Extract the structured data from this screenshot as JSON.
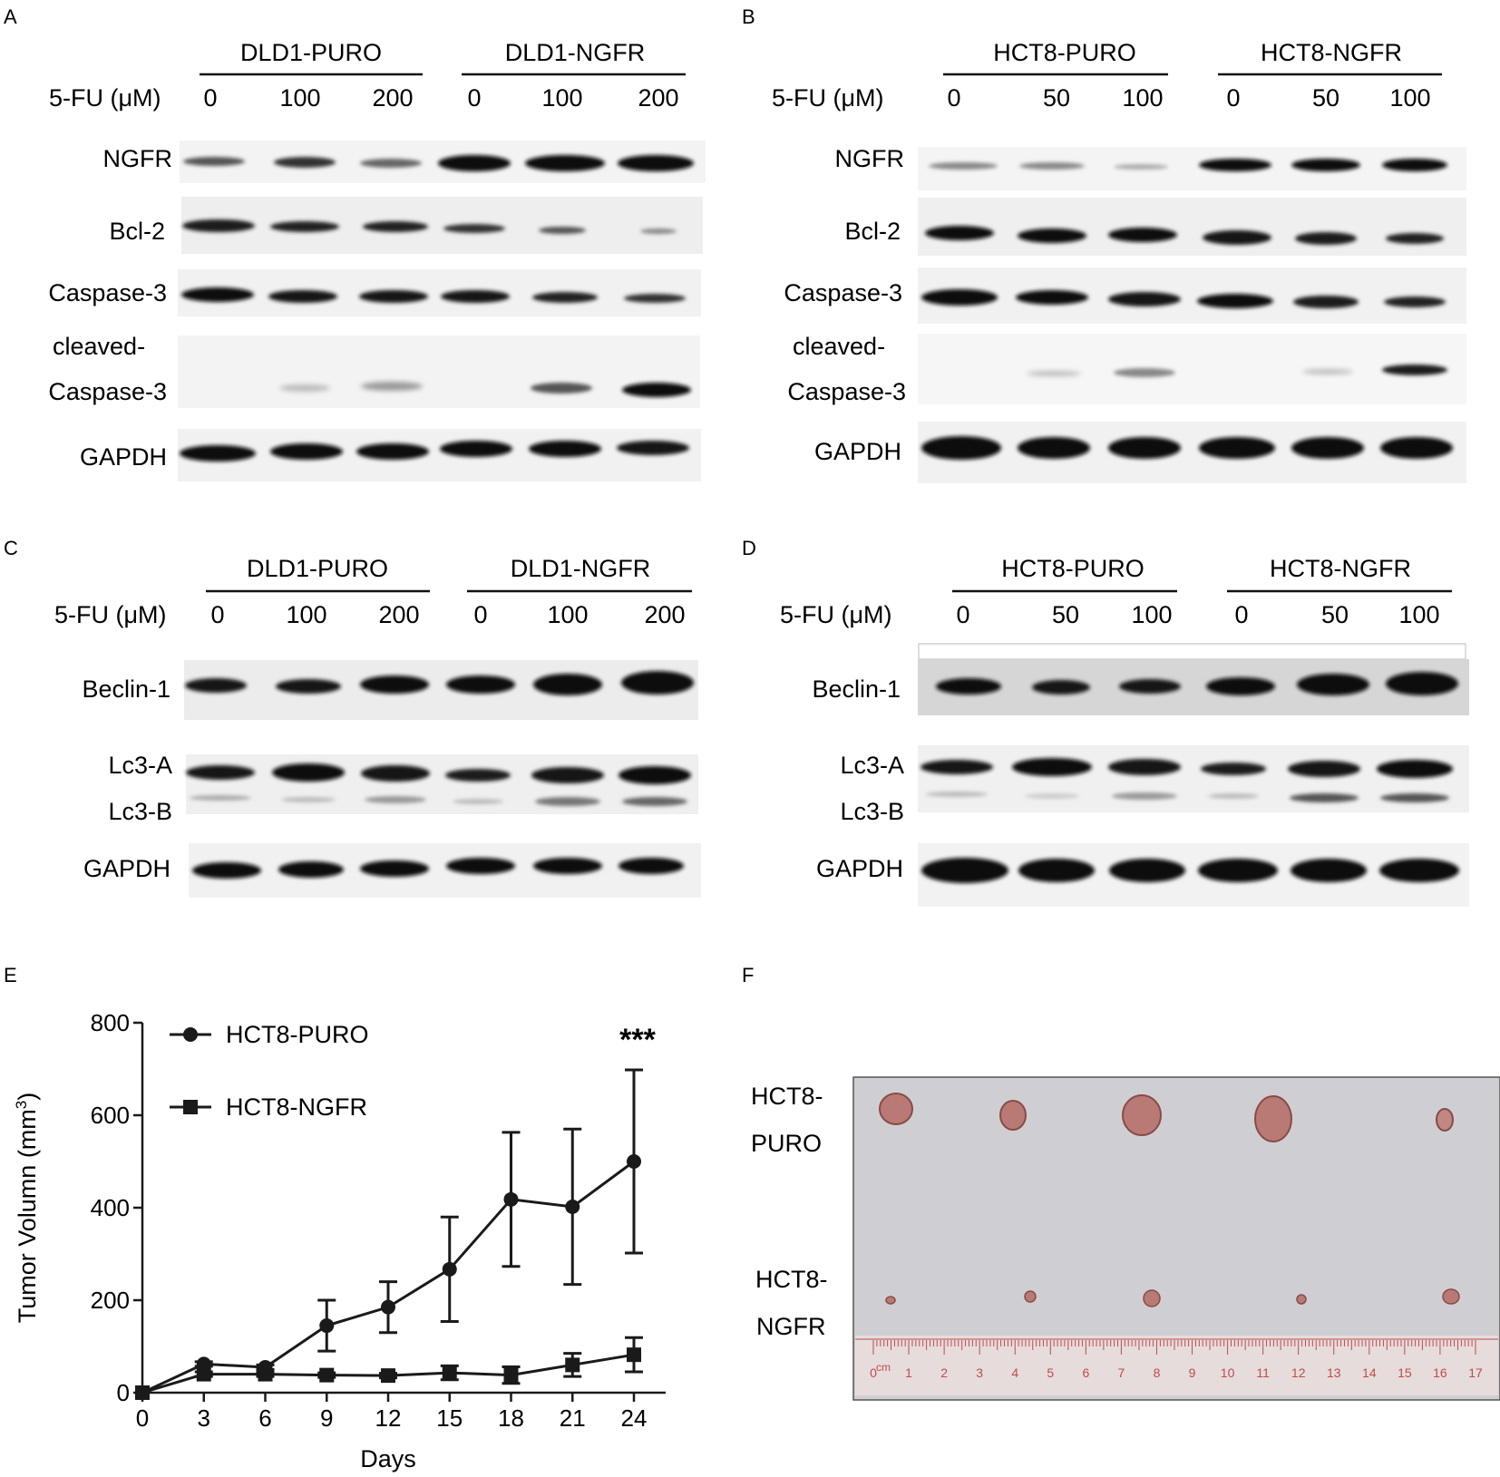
{
  "panels": {
    "A": {
      "letter": "A",
      "treatment_label": "5-FU (μM)",
      "groups": [
        "DLD1-PURO",
        "DLD1-NGFR"
      ],
      "doses": [
        "0",
        "100",
        "200",
        "0",
        "100",
        "200"
      ],
      "rows": [
        "NGFR",
        "Bcl-2",
        "Caspase-3",
        "cleaved-",
        "Caspase-3",
        "GAPDH"
      ]
    },
    "B": {
      "letter": "B",
      "treatment_label": "5-FU (μM)",
      "groups": [
        "HCT8-PURO",
        "HCT8-NGFR"
      ],
      "doses": [
        "0",
        "50",
        "100",
        "0",
        "50",
        "100"
      ],
      "rows": [
        "NGFR",
        "Bcl-2",
        "Caspase-3",
        "cleaved-",
        "Caspase-3",
        "GAPDH"
      ]
    },
    "C": {
      "letter": "C",
      "treatment_label": "5-FU (μM)",
      "groups": [
        "DLD1-PURO",
        "DLD1-NGFR"
      ],
      "doses": [
        "0",
        "100",
        "200",
        "0",
        "100",
        "200"
      ],
      "rows": [
        "Beclin-1",
        "Lc3-A",
        "Lc3-B",
        "GAPDH"
      ]
    },
    "D": {
      "letter": "D",
      "treatment_label": "5-FU (μM)",
      "groups": [
        "HCT8-PURO",
        "HCT8-NGFR"
      ],
      "doses": [
        "0",
        "50",
        "100",
        "0",
        "50",
        "100"
      ],
      "rows": [
        "Beclin-1",
        "Lc3-A",
        "Lc3-B",
        "GAPDH"
      ]
    },
    "E": {
      "letter": "E"
    },
    "F": {
      "letter": "F",
      "row_labels": [
        "HCT8-",
        "PURO",
        "HCT8-",
        "NGFR"
      ],
      "ruler_unit": "cm",
      "ruler_numbers": [
        "0",
        "1",
        "2",
        "3",
        "4",
        "5",
        "6",
        "7",
        "8",
        "9",
        "10",
        "11",
        "12",
        "13",
        "14",
        "15",
        "16",
        "17"
      ]
    }
  },
  "chart_data": {
    "type": "line",
    "title": "",
    "xlabel": "Days",
    "ylabel": "Tumor Volumn (mm",
    "ylabel_sup": "3",
    "ylabel_close": ")",
    "x": [
      0,
      3,
      6,
      9,
      12,
      15,
      18,
      21,
      24
    ],
    "xlim": [
      0,
      24
    ],
    "ylim": [
      0,
      800
    ],
    "xticks": [
      0,
      3,
      6,
      9,
      12,
      15,
      18,
      21,
      24
    ],
    "yticks": [
      0,
      200,
      400,
      600,
      800
    ],
    "legend_position": "top-left",
    "grid": false,
    "annotation": "***",
    "series": [
      {
        "name": "HCT8-PURO",
        "marker": "circle",
        "values": [
          0,
          62,
          55,
          145,
          185,
          267,
          418,
          402,
          500
        ],
        "errors": [
          0,
          5,
          5,
          55,
          55,
          113,
          145,
          168,
          198
        ]
      },
      {
        "name": "HCT8-NGFR",
        "marker": "square",
        "values": [
          0,
          40,
          40,
          38,
          37,
          43,
          38,
          60,
          82
        ],
        "errors": [
          0,
          5,
          5,
          5,
          5,
          15,
          18,
          25,
          37
        ]
      }
    ]
  }
}
